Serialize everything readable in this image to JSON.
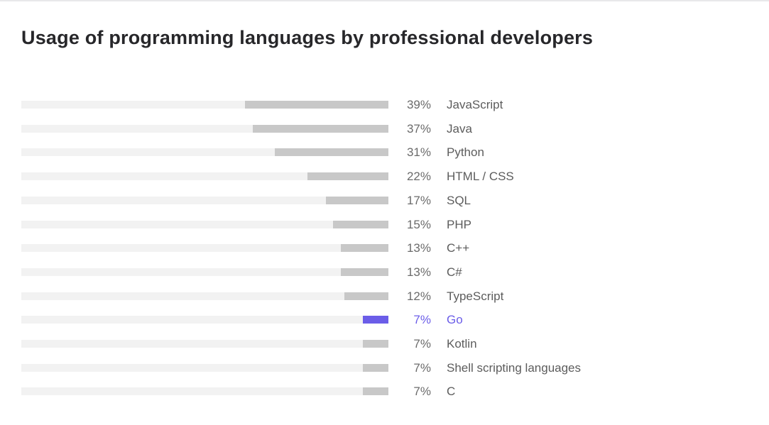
{
  "chart_data": {
    "type": "bar",
    "orientation": "horizontal",
    "title": "Usage of programming languages by professional developers",
    "xlim": [
      0,
      100
    ],
    "unit": "%",
    "grid": false,
    "legend": "none",
    "colors": {
      "default_bar": "#c8c8c8",
      "track": "#f2f2f2",
      "highlight": "#6b5de8"
    },
    "bars": [
      {
        "label": "JavaScript",
        "value": 39,
        "value_label": "39%",
        "highlighted": false
      },
      {
        "label": "Java",
        "value": 37,
        "value_label": "37%",
        "highlighted": false
      },
      {
        "label": "Python",
        "value": 31,
        "value_label": "31%",
        "highlighted": false
      },
      {
        "label": "HTML / CSS",
        "value": 22,
        "value_label": "22%",
        "highlighted": false
      },
      {
        "label": "SQL",
        "value": 17,
        "value_label": "17%",
        "highlighted": false
      },
      {
        "label": "PHP",
        "value": 15,
        "value_label": "15%",
        "highlighted": false
      },
      {
        "label": "C++",
        "value": 13,
        "value_label": "13%",
        "highlighted": false
      },
      {
        "label": "C#",
        "value": 13,
        "value_label": "13%",
        "highlighted": false
      },
      {
        "label": "TypeScript",
        "value": 12,
        "value_label": "12%",
        "highlighted": false
      },
      {
        "label": "Go",
        "value": 7,
        "value_label": "7%",
        "highlighted": true
      },
      {
        "label": "Kotlin",
        "value": 7,
        "value_label": "7%",
        "highlighted": false
      },
      {
        "label": "Shell scripting languages",
        "value": 7,
        "value_label": "7%",
        "highlighted": false
      },
      {
        "label": "C",
        "value": 7,
        "value_label": "7%",
        "highlighted": false
      }
    ]
  }
}
